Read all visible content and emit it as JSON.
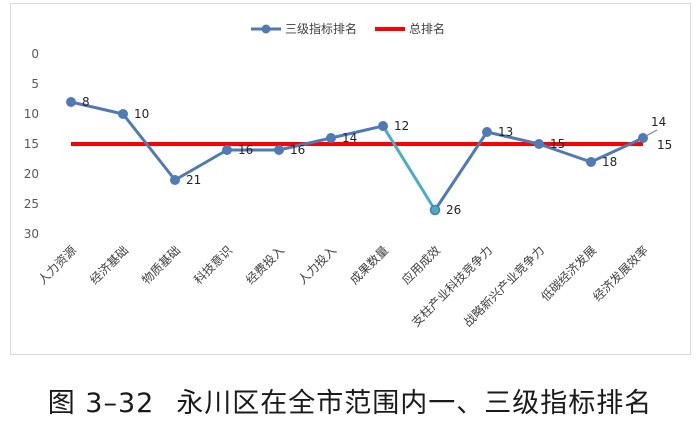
{
  "chart_data": {
    "type": "line",
    "categories": [
      "人力资源",
      "经济基础",
      "物质基础",
      "科技意识",
      "经费投入",
      "人力投入",
      "成果数量",
      "应用成效",
      "支柱产业科技竞争力",
      "战略新兴产业竞争力",
      "低碳经济发展",
      "经济发展效率"
    ],
    "series": [
      {
        "name": "三级指标排名",
        "values": [
          8,
          10,
          21,
          16,
          16,
          14,
          12,
          26,
          13,
          15,
          18,
          14
        ],
        "color": "#4f7ab4",
        "highlight_segment_color": "#4bacc6"
      },
      {
        "name": "总排名",
        "values": [
          15,
          15,
          15,
          15,
          15,
          15,
          15,
          15,
          15,
          15,
          15,
          15
        ],
        "color": "#ff0000"
      }
    ],
    "y_ticks": [
      0,
      5,
      10,
      15,
      20,
      25,
      30
    ],
    "ylim": [
      0,
      30
    ],
    "y_inverted": true,
    "legend_position": "top-center",
    "grid": false,
    "last_total_label": "15"
  },
  "caption": {
    "number": "图 3–32",
    "text": "永川区在全市范围内一、三级指标排名"
  }
}
